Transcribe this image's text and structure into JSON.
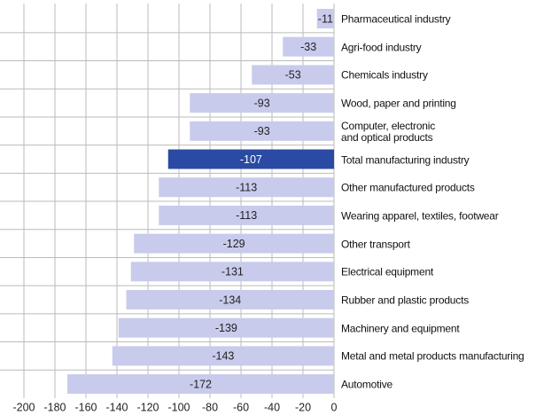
{
  "chart_data": {
    "type": "bar",
    "orientation": "horizontal",
    "categories": [
      "Pharmaceutical industry",
      "Agri-food industry",
      "Chemicals industry",
      "Wood, paper and printing",
      "Computer, electronic\nand optical products",
      "Total manufacturing industry",
      "Other manufactured products",
      "Wearing apparel, textiles, footwear",
      "Other transport",
      "Electrical equipment",
      "Rubber and plastic products",
      "Machinery and equipment",
      "Metal and metal products manufacturing",
      "Automotive"
    ],
    "values": [
      -11,
      -33,
      -53,
      -93,
      -93,
      -107,
      -113,
      -113,
      -129,
      -131,
      -134,
      -139,
      -143,
      -172
    ],
    "colors": [
      "#c8cbec",
      "#c8cbec",
      "#c8cbec",
      "#c8cbec",
      "#c8cbec",
      "#2a4aa3",
      "#c8cbec",
      "#c8cbec",
      "#c8cbec",
      "#c8cbec",
      "#c8cbec",
      "#c8cbec",
      "#c8cbec",
      "#c8cbec"
    ],
    "xlim": [
      -200,
      0
    ],
    "xticks": [
      -200,
      -180,
      -160,
      -140,
      -120,
      -100,
      -80,
      -60,
      -40,
      -20,
      0
    ],
    "grid": true
  }
}
